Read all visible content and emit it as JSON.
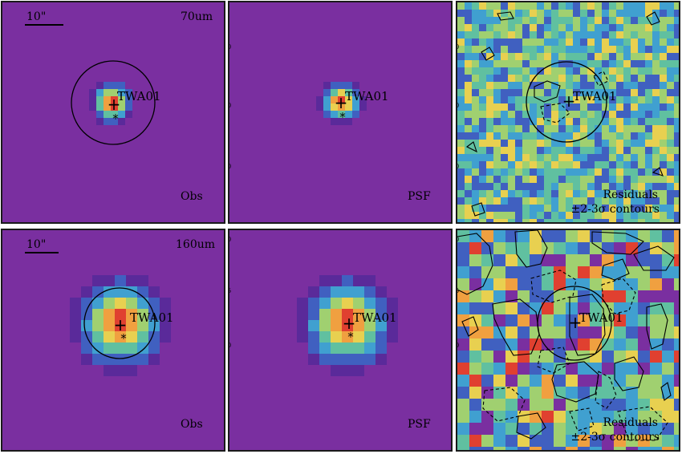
{
  "figure": {
    "source_label": "TWA01",
    "scale_bar_label": "10\"",
    "rows": [
      {
        "band": "70um",
        "panels": [
          {
            "kind": "observed",
            "label": "Obs",
            "ticks": []
          },
          {
            "kind": "psf",
            "label": "PSF",
            "ticks": [
              "30",
              "20",
              "10"
            ]
          },
          {
            "kind": "residual",
            "label_line1": "Residuals",
            "label_line2": "±2-3σ contours",
            "ticks": [
              "30",
              "20",
              "10"
            ]
          }
        ]
      },
      {
        "band": "160um",
        "panels": [
          {
            "kind": "observed",
            "label": "Obs",
            "ticks": []
          },
          {
            "kind": "psf",
            "label": "PSF",
            "ticks": [
              "20",
              "15",
              "10",
              "5"
            ]
          },
          {
            "kind": "residual",
            "label_line1": "Residuals",
            "label_line2": "±2-3σ contours",
            "ticks": [
              "20",
              "15",
              "10",
              "5"
            ]
          }
        ]
      }
    ],
    "colors": {
      "background": "#7a2fa0",
      "colormap": [
        "#5a2a9a",
        "#4060c0",
        "#40a0d0",
        "#60c0a0",
        "#a0d070",
        "#e8d050",
        "#f0a040",
        "#e04030"
      ],
      "contour": "#000000",
      "frame": "#1a1a1a"
    }
  }
}
